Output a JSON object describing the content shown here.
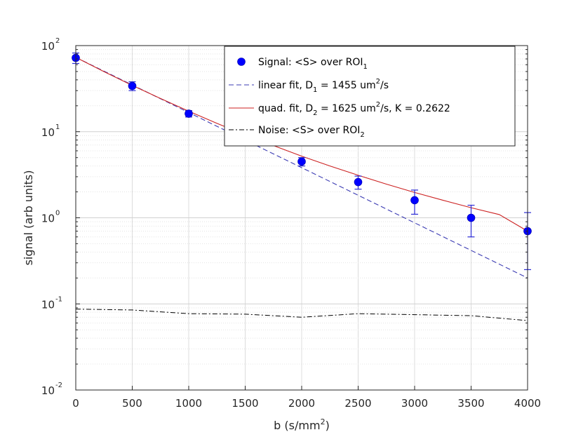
{
  "chart_data": {
    "type": "scatter",
    "title": "",
    "xlabel": {
      "base": "b (s/mm",
      "sup": "2",
      "end": ")"
    },
    "ylabel": "signal (arb units)",
    "xlim": [
      0,
      4000
    ],
    "ylim": [
      0.01,
      100
    ],
    "yscale": "log",
    "grid": true,
    "legend_position": "top-right",
    "x_ticks": [
      "0",
      "500",
      "1000",
      "1500",
      "2000",
      "2500",
      "3000",
      "3500",
      "4000"
    ],
    "y_ticks": [
      {
        "value": 0.01,
        "base": "10",
        "exp": "-2"
      },
      {
        "value": 0.1,
        "base": "10",
        "exp": "-1"
      },
      {
        "value": 1,
        "base": "10",
        "exp": "0"
      },
      {
        "value": 10,
        "base": "10",
        "exp": "1"
      },
      {
        "value": 100,
        "base": "10",
        "exp": "2"
      }
    ],
    "series": [
      {
        "name": "Signal: <S> over ROI1",
        "kind": "points-errorbars",
        "color": "#0000ff",
        "x": [
          0,
          500,
          1000,
          2000,
          2500,
          3000,
          3500,
          4000
        ],
        "y": [
          72,
          34,
          16.2,
          4.5,
          2.6,
          1.6,
          1.0,
          0.7
        ],
        "err_low": [
          62,
          30,
          14.8,
          4.0,
          2.15,
          1.1,
          0.6,
          0.25
        ],
        "err_high": [
          82,
          38,
          17.6,
          5.0,
          3.05,
          2.1,
          1.4,
          1.15
        ]
      },
      {
        "name": "linear fit, D1 = 1455 um2/s",
        "kind": "dashed-line",
        "color": "#3b3bb3",
        "x": [
          0,
          4000
        ],
        "y": [
          73,
          0.2
        ]
      },
      {
        "name": "quad. fit, D2 = 1625 um2/s, K = 0.2622",
        "kind": "line",
        "color": "#cc2222",
        "x": [
          0,
          250,
          500,
          750,
          1000,
          1250,
          1500,
          1750,
          2000,
          2250,
          2500,
          2750,
          3000,
          3250,
          3500,
          3750,
          4000
        ],
        "y": [
          73,
          49.8,
          34.5,
          24.3,
          17.3,
          12.5,
          9.2,
          6.9,
          5.2,
          4.0,
          3.12,
          2.46,
          1.97,
          1.6,
          1.31,
          1.09,
          0.7
        ]
      },
      {
        "name": "Noise: <S> over ROI2",
        "kind": "dashdot-line",
        "color": "#000000",
        "x": [
          0,
          500,
          1000,
          1500,
          2000,
          2500,
          3000,
          3500,
          4000
        ],
        "y": [
          0.087,
          0.085,
          0.077,
          0.076,
          0.07,
          0.077,
          0.075,
          0.073,
          0.064
        ]
      }
    ],
    "legend": [
      {
        "marker": "dot",
        "parts": [
          "Signal: <S> over ROI",
          "1"
        ],
        "sub": [
          false,
          true
        ]
      },
      {
        "marker": "dash",
        "parts": [
          "linear fit, D",
          "1",
          " = 1455 um",
          "2",
          "/s"
        ],
        "sub": [
          false,
          true,
          false,
          "sup",
          false
        ]
      },
      {
        "marker": "solid",
        "parts": [
          "quad. fit, D",
          "2",
          " = 1625 um",
          "2",
          "/s, K = 0.2622"
        ],
        "sub": [
          false,
          true,
          false,
          "sup",
          false
        ]
      },
      {
        "marker": "dashdot",
        "parts": [
          "Noise: <S> over ROI",
          "2"
        ],
        "sub": [
          false,
          true
        ]
      }
    ]
  }
}
